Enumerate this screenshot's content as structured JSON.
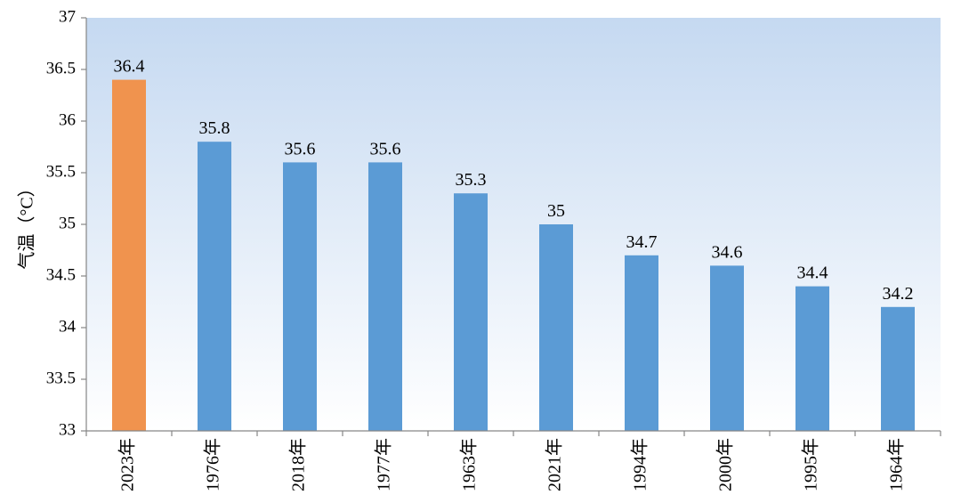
{
  "chart_data": {
    "type": "bar",
    "title": "",
    "xlabel": "",
    "ylabel": "气温（°C）",
    "ylim": [
      33,
      37
    ],
    "yticks": [
      33,
      33.5,
      34,
      34.5,
      35,
      35.5,
      36,
      36.5,
      37
    ],
    "categories": [
      "2023年",
      "1976年",
      "2018年",
      "1977年",
      "1963年",
      "2021年",
      "1994年",
      "2000年",
      "1995年",
      "1964年"
    ],
    "values": [
      36.4,
      35.8,
      35.6,
      35.6,
      35.3,
      35,
      34.7,
      34.6,
      34.4,
      34.2
    ],
    "value_labels": [
      "36.4",
      "35.8",
      "35.6",
      "35.6",
      "35.3",
      "35",
      "34.7",
      "34.6",
      "34.4",
      "34.2"
    ],
    "bar_colors": [
      "#F0934E",
      "#5B9BD5",
      "#5B9BD5",
      "#5B9BD5",
      "#5B9BD5",
      "#5B9BD5",
      "#5B9BD5",
      "#5B9BD5",
      "#5B9BD5",
      "#5B9BD5"
    ],
    "highlight_color": "#F0934E",
    "bar_color": "#5B9BD5",
    "background_gradient": [
      "#C5D9F1",
      "#FFFFFF"
    ],
    "grid": false,
    "legend": "none"
  }
}
